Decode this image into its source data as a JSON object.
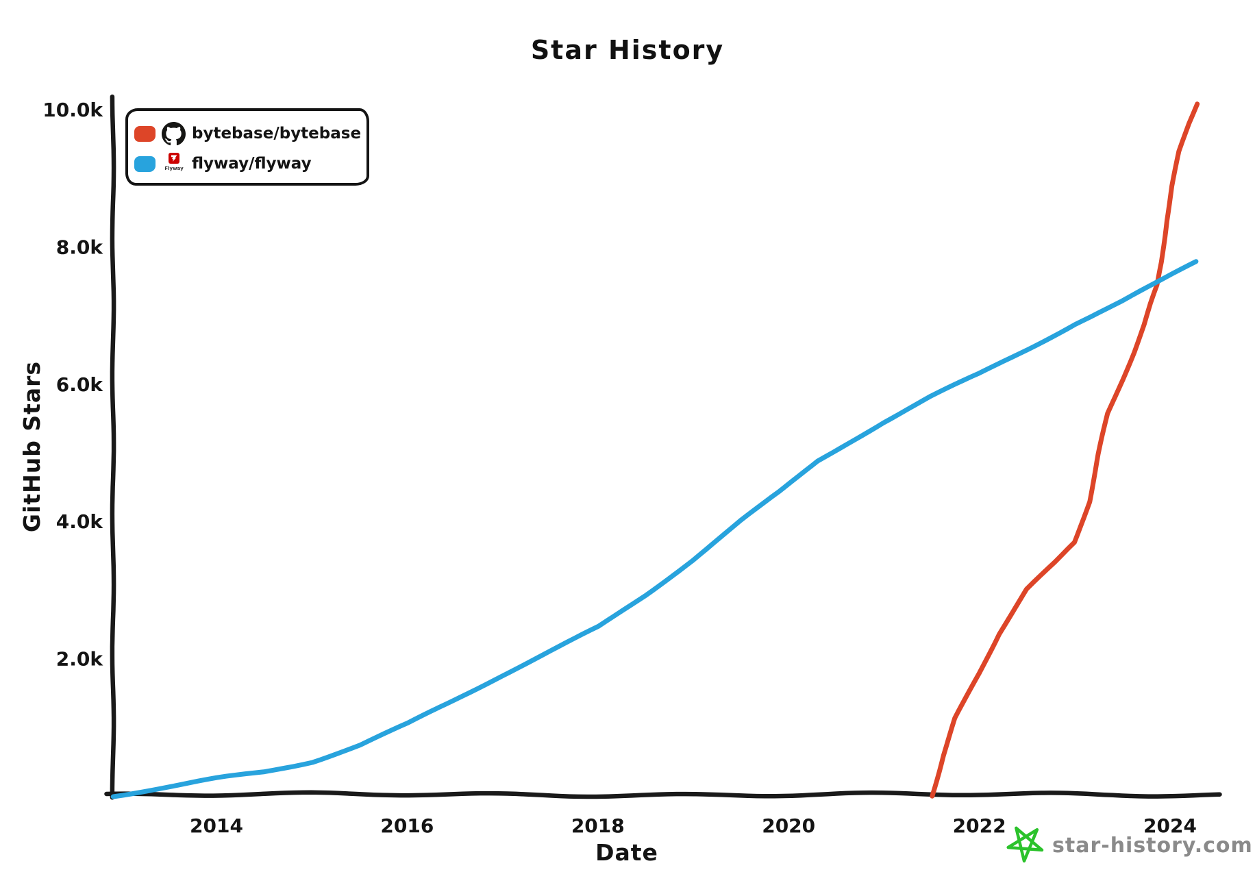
{
  "chart_data": {
    "type": "line",
    "title": "Star History",
    "xlabel": "Date",
    "ylabel": "GitHub Stars",
    "legend_position": "top-left",
    "grid": false,
    "x_axis": {
      "unit": "year",
      "range": [
        2012.85,
        2024.5
      ],
      "ticks": [
        {
          "label": "2014",
          "year": 2014
        },
        {
          "label": "2016",
          "year": 2016
        },
        {
          "label": "2018",
          "year": 2018
        },
        {
          "label": "2020",
          "year": 2020
        },
        {
          "label": "2022",
          "year": 2022
        },
        {
          "label": "2024",
          "year": 2024
        }
      ]
    },
    "y_axis": {
      "unit": "stars",
      "range": [
        0,
        10200
      ],
      "ticks": [
        {
          "label": "2.0k",
          "value": 2000
        },
        {
          "label": "4.0k",
          "value": 4000
        },
        {
          "label": "6.0k",
          "value": 6000
        },
        {
          "label": "8.0k",
          "value": 8000
        },
        {
          "label": "10.0k",
          "value": 10000
        }
      ]
    },
    "series": [
      {
        "name": "bytebase/bytebase",
        "color": "#dd4528",
        "icon": "github-logo",
        "points": [
          [
            2021.5,
            10
          ],
          [
            2021.62,
            600
          ],
          [
            2021.75,
            1150
          ],
          [
            2022.0,
            1800
          ],
          [
            2022.2,
            2350
          ],
          [
            2022.5,
            3000
          ],
          [
            2022.8,
            3400
          ],
          [
            2023.0,
            3700
          ],
          [
            2023.15,
            4300
          ],
          [
            2023.25,
            5000
          ],
          [
            2023.35,
            5600
          ],
          [
            2023.5,
            6100
          ],
          [
            2023.62,
            6500
          ],
          [
            2023.73,
            6900
          ],
          [
            2023.8,
            7200
          ],
          [
            2023.87,
            7470
          ],
          [
            2023.91,
            7800
          ],
          [
            2023.96,
            8400
          ],
          [
            2024.02,
            8900
          ],
          [
            2024.1,
            9400
          ],
          [
            2024.2,
            9800
          ],
          [
            2024.28,
            10080
          ]
        ]
      },
      {
        "name": "flyway/flyway",
        "color": "#28a3dd",
        "icon": "flyway-logo",
        "icon_text": "Flyway",
        "points": [
          [
            2012.92,
            20
          ],
          [
            2013.2,
            80
          ],
          [
            2013.6,
            160
          ],
          [
            2014.0,
            250
          ],
          [
            2014.5,
            350
          ],
          [
            2015.0,
            500
          ],
          [
            2015.5,
            730
          ],
          [
            2016.0,
            1030
          ],
          [
            2016.5,
            1390
          ],
          [
            2017.0,
            1760
          ],
          [
            2017.5,
            2110
          ],
          [
            2018.0,
            2460
          ],
          [
            2018.5,
            2940
          ],
          [
            2019.0,
            3460
          ],
          [
            2019.5,
            4020
          ],
          [
            2019.9,
            4430
          ],
          [
            2020.3,
            4880
          ],
          [
            2020.7,
            5210
          ],
          [
            2021.0,
            5450
          ],
          [
            2021.5,
            5810
          ],
          [
            2022.0,
            6130
          ],
          [
            2022.5,
            6500
          ],
          [
            2023.0,
            6880
          ],
          [
            2023.5,
            7200
          ],
          [
            2023.87,
            7470
          ],
          [
            2024.28,
            7790
          ]
        ]
      }
    ],
    "watermark": {
      "text": "star-history.com",
      "text_color": "#8a8a8a",
      "icon": "green-star",
      "icon_color": "#2bc22b"
    },
    "style": {
      "line_color_red": "#dd4528",
      "line_color_blue": "#28a3dd",
      "axis_color": "#1a1a1a",
      "flyway_logo_red": "#cc0200"
    }
  }
}
